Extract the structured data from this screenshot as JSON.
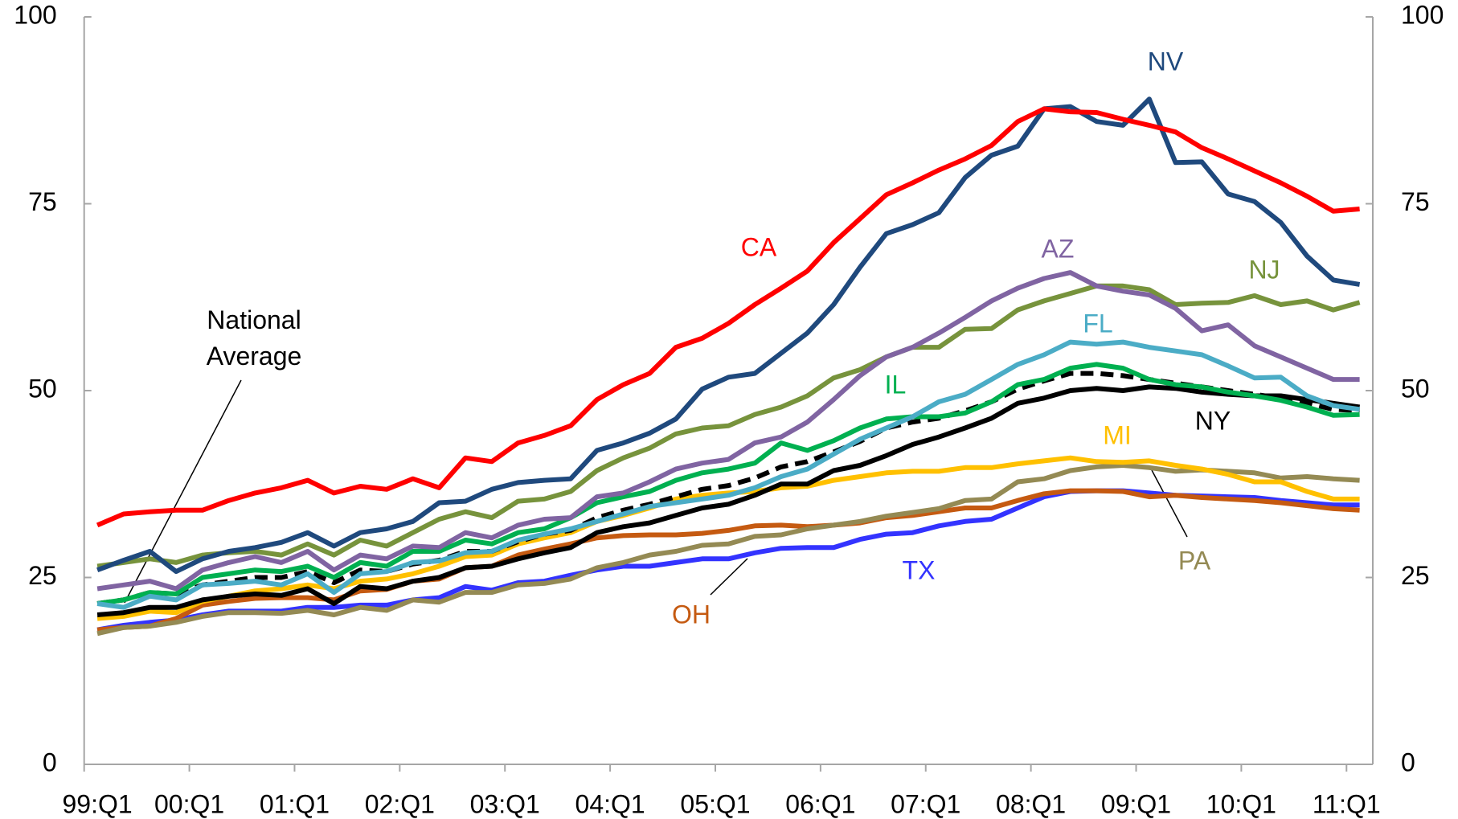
{
  "chart_data": {
    "type": "line",
    "categories": [
      "99:Q1",
      null,
      null,
      null,
      "00:Q1",
      null,
      null,
      null,
      "01:Q1",
      null,
      null,
      null,
      "02:Q1",
      null,
      null,
      null,
      "03:Q1",
      null,
      null,
      null,
      "04:Q1",
      null,
      null,
      null,
      "05:Q1",
      null,
      null,
      null,
      "06:Q1",
      null,
      null,
      null,
      "07:Q1",
      null,
      null,
      null,
      "08:Q1",
      null,
      null,
      null,
      "09:Q1",
      null,
      null,
      null,
      "10:Q1",
      null,
      null,
      null,
      "11:Q1"
    ],
    "ylim": [
      0,
      100
    ],
    "yticks": [
      0,
      25,
      50,
      75,
      100
    ],
    "y2lim": [
      0,
      100
    ],
    "y2ticks": [
      0,
      25,
      50,
      75,
      100
    ],
    "grid": false,
    "series": [
      {
        "name": "CA",
        "color": "#ff0000",
        "values": [
          32,
          33.5,
          33.8,
          34,
          34,
          35.3,
          36.3,
          37,
          38,
          36.3,
          37.2,
          36.8,
          38.2,
          37,
          41,
          40.5,
          43,
          44,
          45.3,
          48.8,
          50.8,
          52.3,
          55.8,
          57,
          59,
          61.5,
          63.7,
          66,
          69.8,
          73,
          76.2,
          77.8,
          79.5,
          81,
          82.8,
          86,
          87.7,
          87.3,
          87.2,
          86.3,
          85.5,
          84.6,
          82.5,
          81,
          79.4,
          77.8,
          76,
          74,
          74.3
        ]
      },
      {
        "name": "NV",
        "color": "#1f497d",
        "values": [
          26,
          27.3,
          28.5,
          25.8,
          27.5,
          28.5,
          29,
          29.7,
          31,
          29.2,
          31,
          31.5,
          32.5,
          35,
          35.2,
          36.8,
          37.7,
          38,
          38.2,
          42,
          43,
          44.3,
          46.2,
          50.2,
          51.8,
          52.3,
          55,
          57.7,
          61.5,
          66.5,
          71,
          72.2,
          73.8,
          78.5,
          81.5,
          82.7,
          87.7,
          88,
          86,
          85.5,
          89,
          80.5,
          80.6,
          76.3,
          75.3,
          72.5,
          68,
          64.8,
          64.2
        ]
      },
      {
        "name": "AZ",
        "color": "#8064a2",
        "values": [
          23.5,
          24,
          24.5,
          23.5,
          26,
          27,
          27.8,
          27,
          28.5,
          26,
          28,
          27.5,
          29.2,
          29,
          31,
          30.3,
          32,
          32.8,
          33,
          35.8,
          36.3,
          37.8,
          39.5,
          40.3,
          40.8,
          43,
          43.8,
          45.8,
          48.8,
          52,
          54.5,
          55.8,
          57.7,
          59.8,
          62,
          63.7,
          65,
          65.8,
          64,
          63.3,
          62.8,
          61,
          58,
          58.8,
          56,
          54.5,
          53,
          51.5,
          51.5
        ]
      },
      {
        "name": "NJ",
        "color": "#77933c",
        "values": [
          26.5,
          27,
          27.5,
          27,
          28,
          28.3,
          28.5,
          28,
          29.5,
          28,
          30,
          29.2,
          31,
          32.8,
          33.8,
          33,
          35.2,
          35.5,
          36.5,
          39.3,
          41,
          42.3,
          44.2,
          45,
          45.3,
          46.8,
          47.8,
          49.3,
          51.7,
          52.8,
          54.5,
          55.8,
          55.8,
          58.2,
          58.3,
          60.8,
          62,
          63,
          64,
          64,
          63.5,
          61.5,
          61.7,
          61.8,
          62.7,
          61.5,
          62,
          60.8,
          61.8
        ]
      },
      {
        "name": "FL",
        "color": "#4bacc6",
        "values": [
          21.5,
          21,
          22.5,
          22,
          24,
          24.2,
          24.5,
          24,
          25.5,
          23,
          25.5,
          25.8,
          27,
          27.2,
          28.3,
          28.5,
          30,
          30.8,
          31.5,
          32.5,
          33.5,
          34.5,
          35,
          35.5,
          36,
          37,
          38.5,
          39.5,
          41.5,
          43.5,
          45,
          46.5,
          48.5,
          49.5,
          51.5,
          53.5,
          54.8,
          56.5,
          56.2,
          56.5,
          55.8,
          55.3,
          54.8,
          53.3,
          51.7,
          51.8,
          49.3,
          48,
          47.5
        ]
      },
      {
        "name": "IL",
        "color": "#00b050",
        "values": [
          21.5,
          22,
          23,
          22.8,
          25,
          25.5,
          26,
          25.8,
          26.5,
          25,
          27,
          26.5,
          28.5,
          28.5,
          30,
          29.5,
          31,
          31.5,
          33,
          35,
          35.8,
          36.5,
          38,
          39,
          39.5,
          40.3,
          43,
          42,
          43.3,
          45,
          46.2,
          46.5,
          46.5,
          47,
          48.5,
          50.8,
          51.5,
          53,
          53.5,
          53,
          51.5,
          50.8,
          50.5,
          49.8,
          49.3,
          48.7,
          47.8,
          46.7,
          46.8
        ]
      },
      {
        "name": "National Average",
        "color": "#000000",
        "dashed": true,
        "values": [
          21.5,
          22,
          23,
          22.8,
          24,
          24.5,
          25,
          25,
          25.8,
          24.3,
          26,
          25.8,
          26.8,
          27.3,
          28.5,
          28.5,
          29.8,
          30.8,
          31.3,
          33,
          34,
          34.8,
          35.8,
          36.8,
          37.3,
          38.3,
          39.8,
          40.5,
          41.8,
          43.2,
          45,
          45.8,
          46.3,
          47.3,
          48.5,
          50.2,
          51.3,
          52.3,
          52.3,
          52,
          51.5,
          51,
          50.5,
          50,
          49.5,
          49,
          48.3,
          47.5,
          47.3
        ]
      },
      {
        "name": "NY",
        "color": "#000000",
        "values": [
          20,
          20.3,
          21,
          21,
          22,
          22.5,
          22.8,
          22.6,
          23.5,
          21.5,
          23.8,
          23.5,
          24.5,
          25,
          26.3,
          26.5,
          27.5,
          28.3,
          29,
          31,
          31.8,
          32.3,
          33.3,
          34.3,
          34.8,
          36,
          37.5,
          37.5,
          39.3,
          40,
          41.3,
          42.8,
          43.8,
          45,
          46.3,
          48.3,
          49,
          50,
          50.3,
          50,
          50.5,
          50.3,
          49.8,
          49.5,
          49.3,
          49.3,
          48.8,
          48.3,
          47.8
        ]
      },
      {
        "name": "MI",
        "color": "#ffc000",
        "values": [
          19.5,
          19.8,
          20.5,
          20.3,
          21.8,
          22.5,
          23.2,
          23.5,
          24,
          23.5,
          24.5,
          24.8,
          25.5,
          26.5,
          27.8,
          28,
          29.5,
          30.3,
          31,
          32.5,
          33.3,
          34.3,
          35.5,
          36,
          36.3,
          36.5,
          37,
          37.2,
          38,
          38.5,
          39,
          39.2,
          39.2,
          39.7,
          39.7,
          40.2,
          40.6,
          41,
          40.5,
          40.4,
          40.6,
          40,
          39.5,
          38.8,
          37.8,
          37.8,
          36.5,
          35.5,
          35.5
        ]
      },
      {
        "name": "PA",
        "color": "#948a54",
        "values": [
          17.5,
          18.3,
          18.5,
          19,
          19.8,
          20.3,
          20.3,
          20.2,
          20.6,
          20,
          21,
          20.6,
          22,
          21.7,
          23,
          23,
          24,
          24.2,
          24.8,
          26.3,
          27,
          28,
          28.5,
          29.3,
          29.5,
          30.5,
          30.7,
          31.5,
          32,
          32.5,
          33.2,
          33.7,
          34.2,
          35.3,
          35.5,
          37.8,
          38.2,
          39.3,
          39.8,
          40,
          39.7,
          39.2,
          39.4,
          39.2,
          39,
          38.3,
          38.5,
          38.2,
          38
        ]
      },
      {
        "name": "OH",
        "color": "#c55a11",
        "values": [
          18,
          18.3,
          18.5,
          19.5,
          21.3,
          21.8,
          22.2,
          22.3,
          22.3,
          22,
          23.2,
          23.4,
          24.5,
          24.8,
          26.3,
          26.5,
          28,
          28.8,
          29.5,
          30.3,
          30.6,
          30.7,
          30.7,
          30.9,
          31.3,
          31.9,
          32,
          31.8,
          32,
          32.3,
          33,
          33.3,
          33.8,
          34.3,
          34.3,
          35.3,
          36.2,
          36.6,
          36.6,
          36.5,
          35.8,
          36,
          35.7,
          35.5,
          35.3,
          35,
          34.6,
          34.2,
          34
        ]
      },
      {
        "name": "TX",
        "color": "#3333ff",
        "values": [
          18,
          18.6,
          19,
          19.3,
          20,
          20.5,
          20.5,
          20.5,
          21,
          21,
          21.3,
          21.3,
          22,
          22.3,
          23.8,
          23.3,
          24.3,
          24.5,
          25.3,
          26,
          26.5,
          26.5,
          27,
          27.5,
          27.5,
          28.3,
          28.9,
          29,
          29,
          30.1,
          30.8,
          31,
          31.9,
          32.5,
          32.8,
          34.3,
          35.8,
          36.5,
          36.6,
          36.6,
          36.3,
          36,
          35.9,
          35.8,
          35.7,
          35.3,
          35,
          34.7,
          34.7
        ]
      }
    ]
  }
}
